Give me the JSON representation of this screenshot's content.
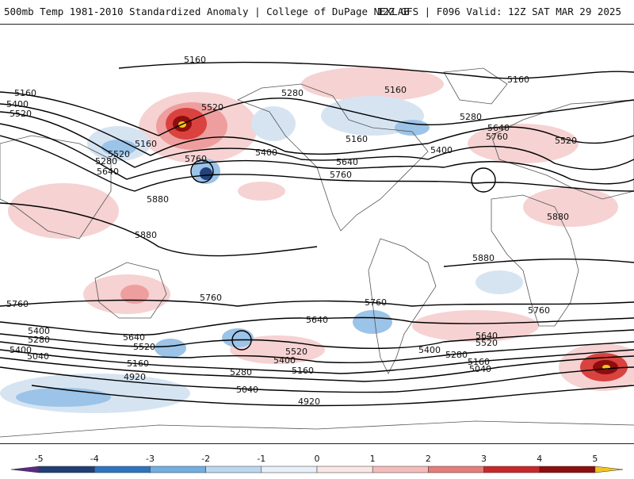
{
  "header": {
    "title_left": "500mb Temp 1981-2010 Standardized Anomaly | College of DuPage NEXLAB",
    "title_right": "12Z GFS | F096 Valid: 12Z SAT MAR 29 2025"
  },
  "colors": {
    "coastline": "#555555",
    "contour": "#000000",
    "cold_light": "#d6e4f2",
    "cold_mid": "#9cc3e8",
    "cold_strong": "#4e94d6",
    "cold_deep": "#21427a",
    "warm_light": "#f6d2d2",
    "warm_mid": "#ee9e9e",
    "warm_strong": "#d9423f",
    "warm_deep": "#8e0d0d",
    "extreme": "#f2c51d"
  },
  "contour_labels": [
    "5160",
    "5160",
    "5160",
    "5400",
    "5520",
    "5520",
    "5160",
    "5280",
    "5640",
    "5760",
    "5400",
    "5280",
    "5160",
    "5520",
    "5640",
    "5760",
    "5400",
    "5280",
    "5160",
    "5640",
    "5760",
    "5520",
    "5880",
    "5880",
    "5880",
    "5880",
    "5760",
    "5760",
    "5760",
    "5760",
    "5640",
    "5640",
    "5640",
    "5520",
    "5520",
    "5520",
    "5400",
    "5400",
    "5400",
    "5400",
    "5280",
    "5280",
    "5280",
    "5160",
    "5160",
    "5160",
    "5040",
    "5040",
    "5040",
    "4920",
    "4920"
  ],
  "colorbar": {
    "ticks": [
      "-5",
      "-4",
      "-3",
      "-2",
      "-1",
      "0",
      "1",
      "2",
      "3",
      "4",
      "5"
    ],
    "segment_colors": [
      "#5a2a82",
      "#1f3f75",
      "#2f74c0",
      "#72aee0",
      "#bcd7ef",
      "#e7eff8",
      "#fbe6e6",
      "#f5bcbc",
      "#e57d7b",
      "#c8282a",
      "#8e0d0d",
      "#f2c51d"
    ]
  }
}
